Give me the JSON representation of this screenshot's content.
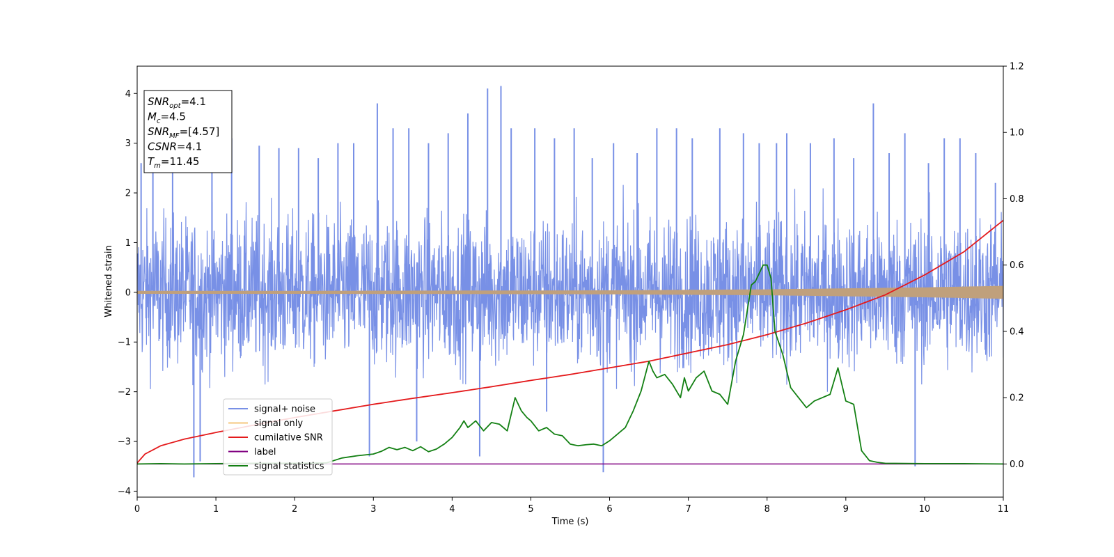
{
  "chart_data": {
    "type": "line",
    "xlabel": "Time (s)",
    "ylabel": "Whitened strain",
    "xlim": [
      0,
      11
    ],
    "ylim_left": [
      -4.12,
      4.55
    ],
    "ylim_right": [
      -0.1,
      1.2
    ],
    "x_ticks": [
      "0",
      "1",
      "2",
      "3",
      "4",
      "5",
      "6",
      "7",
      "8",
      "9",
      "10",
      "11"
    ],
    "y_ticks_left": [
      "−4",
      "−3",
      "−2",
      "−1",
      "0",
      "1",
      "2",
      "3",
      "4"
    ],
    "y_ticks_right": [
      "0.0",
      "0.2",
      "0.4",
      "0.6",
      "0.8",
      "1.0",
      "1.2"
    ],
    "grid": false,
    "legend_position": "lower-left",
    "colors": {
      "signal_noise": "#7890e6",
      "signal_only": "#f5c77e",
      "signal_only_band": "#c0a07c",
      "cumulative_snr": "#e41a1c",
      "label": "#800080",
      "signal_statistics": "#138013"
    },
    "info_box": {
      "lines": [
        {
          "main": "SNR",
          "sub": "opt",
          "rest": "=4.1"
        },
        {
          "main": "M",
          "sub": "c",
          "rest": "=4.5"
        },
        {
          "main": "SNR",
          "sub": "MF",
          "rest": "=[4.57]"
        },
        {
          "main": "CSNR",
          "sub": "",
          "rest": "=4.1"
        },
        {
          "main": "T",
          "sub": "m",
          "rest": "=11.45"
        }
      ]
    },
    "series": [
      {
        "name": "signal+ noise",
        "axis": "left",
        "noise_band": [
          -2.3,
          2.3
        ],
        "peaks": [
          {
            "x": 0.05,
            "y": 2.6
          },
          {
            "x": 0.2,
            "y": 2.4
          },
          {
            "x": 0.45,
            "y": 2.6
          },
          {
            "x": 0.72,
            "y": -3.72
          },
          {
            "x": 0.8,
            "y": -3.4
          },
          {
            "x": 0.95,
            "y": 2.8
          },
          {
            "x": 1.2,
            "y": 3.1
          },
          {
            "x": 1.55,
            "y": 2.95
          },
          {
            "x": 1.8,
            "y": 2.9
          },
          {
            "x": 2.05,
            "y": 2.9
          },
          {
            "x": 2.3,
            "y": 2.7
          },
          {
            "x": 2.55,
            "y": 3.0
          },
          {
            "x": 2.75,
            "y": 3.0
          },
          {
            "x": 2.95,
            "y": -3.3
          },
          {
            "x": 3.05,
            "y": 3.8
          },
          {
            "x": 3.25,
            "y": 3.3
          },
          {
            "x": 3.45,
            "y": 3.3
          },
          {
            "x": 3.55,
            "y": -3.0
          },
          {
            "x": 3.7,
            "y": 3.0
          },
          {
            "x": 3.95,
            "y": 3.2
          },
          {
            "x": 4.2,
            "y": 3.6
          },
          {
            "x": 4.35,
            "y": -3.3
          },
          {
            "x": 4.45,
            "y": 4.1
          },
          {
            "x": 4.62,
            "y": 4.15
          },
          {
            "x": 4.75,
            "y": 3.3
          },
          {
            "x": 5.05,
            "y": 3.3
          },
          {
            "x": 5.2,
            "y": -2.4
          },
          {
            "x": 5.3,
            "y": 3.1
          },
          {
            "x": 5.55,
            "y": 3.3
          },
          {
            "x": 5.78,
            "y": 2.7
          },
          {
            "x": 5.92,
            "y": -3.62
          },
          {
            "x": 6.05,
            "y": 3.0
          },
          {
            "x": 6.35,
            "y": 2.8
          },
          {
            "x": 6.6,
            "y": 3.3
          },
          {
            "x": 6.85,
            "y": 3.3
          },
          {
            "x": 7.05,
            "y": 3.1
          },
          {
            "x": 7.4,
            "y": 3.3
          },
          {
            "x": 7.7,
            "y": 3.2
          },
          {
            "x": 7.9,
            "y": 3.0
          },
          {
            "x": 8.12,
            "y": 3.0
          },
          {
            "x": 8.25,
            "y": 3.2
          },
          {
            "x": 8.55,
            "y": 3.0
          },
          {
            "x": 8.85,
            "y": 3.1
          },
          {
            "x": 9.1,
            "y": 2.7
          },
          {
            "x": 9.35,
            "y": 3.8
          },
          {
            "x": 9.55,
            "y": 2.8
          },
          {
            "x": 9.75,
            "y": 3.2
          },
          {
            "x": 9.88,
            "y": -3.5
          },
          {
            "x": 10.05,
            "y": 2.6
          },
          {
            "x": 10.25,
            "y": 3.1
          },
          {
            "x": 10.45,
            "y": 3.1
          },
          {
            "x": 10.65,
            "y": 2.8
          },
          {
            "x": 10.9,
            "y": 2.2
          }
        ]
      },
      {
        "name": "signal only",
        "axis": "left",
        "x": [
          0,
          2,
          4,
          6,
          7,
          8,
          9,
          10,
          11
        ],
        "amplitude": [
          0.03,
          0.03,
          0.035,
          0.04,
          0.05,
          0.06,
          0.08,
          0.1,
          0.13
        ]
      },
      {
        "name": "cumilative SNR",
        "axis": "right",
        "x": [
          0,
          0.1,
          0.3,
          0.6,
          1,
          1.5,
          2,
          2.5,
          3,
          3.5,
          4,
          4.5,
          5,
          5.5,
          6,
          6.5,
          7,
          7.5,
          8,
          8.5,
          9,
          9.5,
          10,
          10.5,
          11
        ],
        "values": [
          0.003,
          0.03,
          0.055,
          0.075,
          0.095,
          0.118,
          0.14,
          0.16,
          0.18,
          0.198,
          0.215,
          0.233,
          0.252,
          0.27,
          0.29,
          0.31,
          0.335,
          0.36,
          0.39,
          0.425,
          0.465,
          0.51,
          0.57,
          0.64,
          0.735
        ]
      },
      {
        "name": "label",
        "axis": "right",
        "x": [
          0,
          11
        ],
        "values": [
          0.0,
          0.0
        ]
      },
      {
        "name": "signal statistics",
        "axis": "right",
        "x": [
          0,
          0.3,
          0.6,
          1,
          1.5,
          2,
          2.4,
          2.6,
          2.8,
          3.0,
          3.1,
          3.2,
          3.3,
          3.4,
          3.5,
          3.6,
          3.7,
          3.8,
          3.9,
          4.0,
          4.1,
          4.15,
          4.2,
          4.3,
          4.4,
          4.5,
          4.6,
          4.7,
          4.8,
          4.88,
          4.95,
          5.0,
          5.1,
          5.2,
          5.3,
          5.4,
          5.5,
          5.6,
          5.7,
          5.8,
          5.9,
          6.0,
          6.1,
          6.2,
          6.3,
          6.4,
          6.5,
          6.55,
          6.6,
          6.7,
          6.8,
          6.9,
          6.95,
          7.0,
          7.1,
          7.2,
          7.3,
          7.4,
          7.5,
          7.6,
          7.7,
          7.8,
          7.85,
          7.95,
          8.0,
          8.05,
          8.1,
          8.2,
          8.3,
          8.4,
          8.5,
          8.6,
          8.7,
          8.8,
          8.9,
          9.0,
          9.1,
          9.2,
          9.3,
          9.4,
          9.5,
          10,
          10.5,
          11
        ],
        "values": [
          0.0,
          0.001,
          0.0,
          0.001,
          0.002,
          0.002,
          0.003,
          0.018,
          0.025,
          0.03,
          0.038,
          0.05,
          0.043,
          0.05,
          0.04,
          0.052,
          0.037,
          0.045,
          0.06,
          0.08,
          0.11,
          0.13,
          0.11,
          0.13,
          0.1,
          0.125,
          0.12,
          0.1,
          0.2,
          0.16,
          0.14,
          0.13,
          0.1,
          0.11,
          0.09,
          0.085,
          0.06,
          0.055,
          0.058,
          0.06,
          0.055,
          0.07,
          0.09,
          0.11,
          0.16,
          0.22,
          0.31,
          0.28,
          0.26,
          0.27,
          0.24,
          0.2,
          0.26,
          0.22,
          0.26,
          0.28,
          0.22,
          0.21,
          0.18,
          0.31,
          0.39,
          0.54,
          0.55,
          0.6,
          0.6,
          0.56,
          0.4,
          0.33,
          0.23,
          0.2,
          0.17,
          0.19,
          0.2,
          0.21,
          0.29,
          0.19,
          0.18,
          0.04,
          0.01,
          0.005,
          0.002,
          0.001,
          0.001,
          0.0
        ]
      }
    ]
  }
}
